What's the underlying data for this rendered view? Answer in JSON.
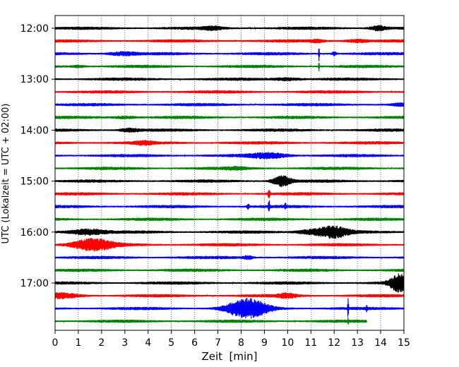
{
  "chart_data": {
    "type": "line",
    "title": "",
    "xlabel": "Zeit  [min]",
    "ylabel": "UTC (Lokalzeit = UTC + 02:00)",
    "xlim": [
      0,
      15
    ],
    "xticks": [
      0,
      1,
      2,
      3,
      4,
      5,
      6,
      7,
      8,
      9,
      10,
      11,
      12,
      13,
      14,
      15
    ],
    "xtick_labels": [
      "0",
      "1",
      "2",
      "3",
      "4",
      "5",
      "6",
      "7",
      "8",
      "9",
      "10",
      "11",
      "12",
      "13",
      "14",
      "15"
    ],
    "ytick_labels": [
      "12:00",
      "13:00",
      "14:00",
      "15:00",
      "16:00",
      "17:00"
    ],
    "grid": "vertical dotted at each minute",
    "trace_colors": [
      "#000000",
      "#ff0000",
      "#0000ff",
      "#008000"
    ],
    "traces": [
      {
        "start": "12:00",
        "events": [
          {
            "t": 6.8,
            "amp": 0.25,
            "dur": 0.4
          },
          {
            "t": 13.9,
            "amp": 0.4,
            "dur": 0.4
          }
        ]
      },
      {
        "start": "12:15",
        "events": [
          {
            "t": 11.3,
            "amp": 0.2,
            "dur": 0.3
          },
          {
            "t": 13.0,
            "amp": 0.25,
            "dur": 0.5
          }
        ]
      },
      {
        "start": "12:30",
        "events": [
          {
            "t": 2.9,
            "amp": 0.3,
            "dur": 0.6
          },
          {
            "t": 11.35,
            "amp": 1.5,
            "dur": 0.02
          },
          {
            "t": 12.0,
            "amp": 0.3,
            "dur": 0.1
          }
        ]
      },
      {
        "start": "12:45",
        "events": [
          {
            "t": 1.0,
            "amp": 0.2,
            "dur": 0.3
          },
          {
            "t": 11.35,
            "amp": 0.9,
            "dur": 0.02
          }
        ]
      },
      {
        "start": "13:00",
        "events": [
          {
            "t": 10.0,
            "amp": 0.25,
            "dur": 0.6
          }
        ]
      },
      {
        "start": "13:15",
        "events": []
      },
      {
        "start": "13:30",
        "events": [
          {
            "t": 14.8,
            "amp": 0.2,
            "dur": 0.3
          }
        ]
      },
      {
        "start": "13:45",
        "events": [
          {
            "t": 3.0,
            "amp": 0.2,
            "dur": 0.5
          }
        ]
      },
      {
        "start": "14:00",
        "events": [
          {
            "t": 3.2,
            "amp": 0.3,
            "dur": 0.4
          }
        ]
      },
      {
        "start": "14:15",
        "events": [
          {
            "t": 3.8,
            "amp": 0.25,
            "dur": 0.4
          }
        ]
      },
      {
        "start": "14:30",
        "events": [
          {
            "t": 9.2,
            "amp": 0.45,
            "dur": 0.8
          }
        ]
      },
      {
        "start": "14:45",
        "events": [
          {
            "t": 7.8,
            "amp": 0.15,
            "dur": 0.5
          }
        ]
      },
      {
        "start": "15:00",
        "events": [
          {
            "t": 9.75,
            "amp": 0.9,
            "dur": 0.4
          }
        ]
      },
      {
        "start": "15:15",
        "events": [
          {
            "t": 9.2,
            "amp": 0.6,
            "dur": 0.05
          }
        ]
      },
      {
        "start": "15:30",
        "events": [
          {
            "t": 8.3,
            "amp": 0.4,
            "dur": 0.05
          },
          {
            "t": 9.2,
            "amp": 1.2,
            "dur": 0.03
          },
          {
            "t": 9.9,
            "amp": 0.5,
            "dur": 0.03
          }
        ]
      },
      {
        "start": "15:45",
        "events": []
      },
      {
        "start": "16:00",
        "events": [
          {
            "t": 1.4,
            "amp": 0.5,
            "dur": 0.8
          },
          {
            "t": 10.8,
            "amp": 0.3,
            "dur": 0.5
          },
          {
            "t": 11.9,
            "amp": 1.0,
            "dur": 0.7
          }
        ]
      },
      {
        "start": "16:15",
        "events": [
          {
            "t": 1.6,
            "amp": 1.0,
            "dur": 0.9
          }
        ]
      },
      {
        "start": "16:30",
        "events": [
          {
            "t": 8.3,
            "amp": 0.3,
            "dur": 0.2
          }
        ]
      },
      {
        "start": "16:45",
        "events": []
      },
      {
        "start": "17:00",
        "events": [
          {
            "t": 14.8,
            "amp": 1.5,
            "dur": 0.4
          }
        ]
      },
      {
        "start": "17:15",
        "events": [
          {
            "t": 0.2,
            "amp": 0.4,
            "dur": 0.8
          },
          {
            "t": 10.0,
            "amp": 0.35,
            "dur": 0.4
          }
        ]
      },
      {
        "start": "17:30",
        "events": [
          {
            "t": 7.7,
            "amp": 0.3,
            "dur": 0.6
          },
          {
            "t": 8.35,
            "amp": 1.5,
            "dur": 0.8
          },
          {
            "t": 12.6,
            "amp": 2.0,
            "dur": 0.02
          },
          {
            "t": 13.4,
            "amp": 0.4,
            "dur": 0.03
          }
        ]
      },
      {
        "start": "17:45",
        "events": [
          {
            "t": 12.6,
            "amp": 0.5,
            "dur": 0.02
          }
        ],
        "end_min": 13.4
      }
    ]
  }
}
